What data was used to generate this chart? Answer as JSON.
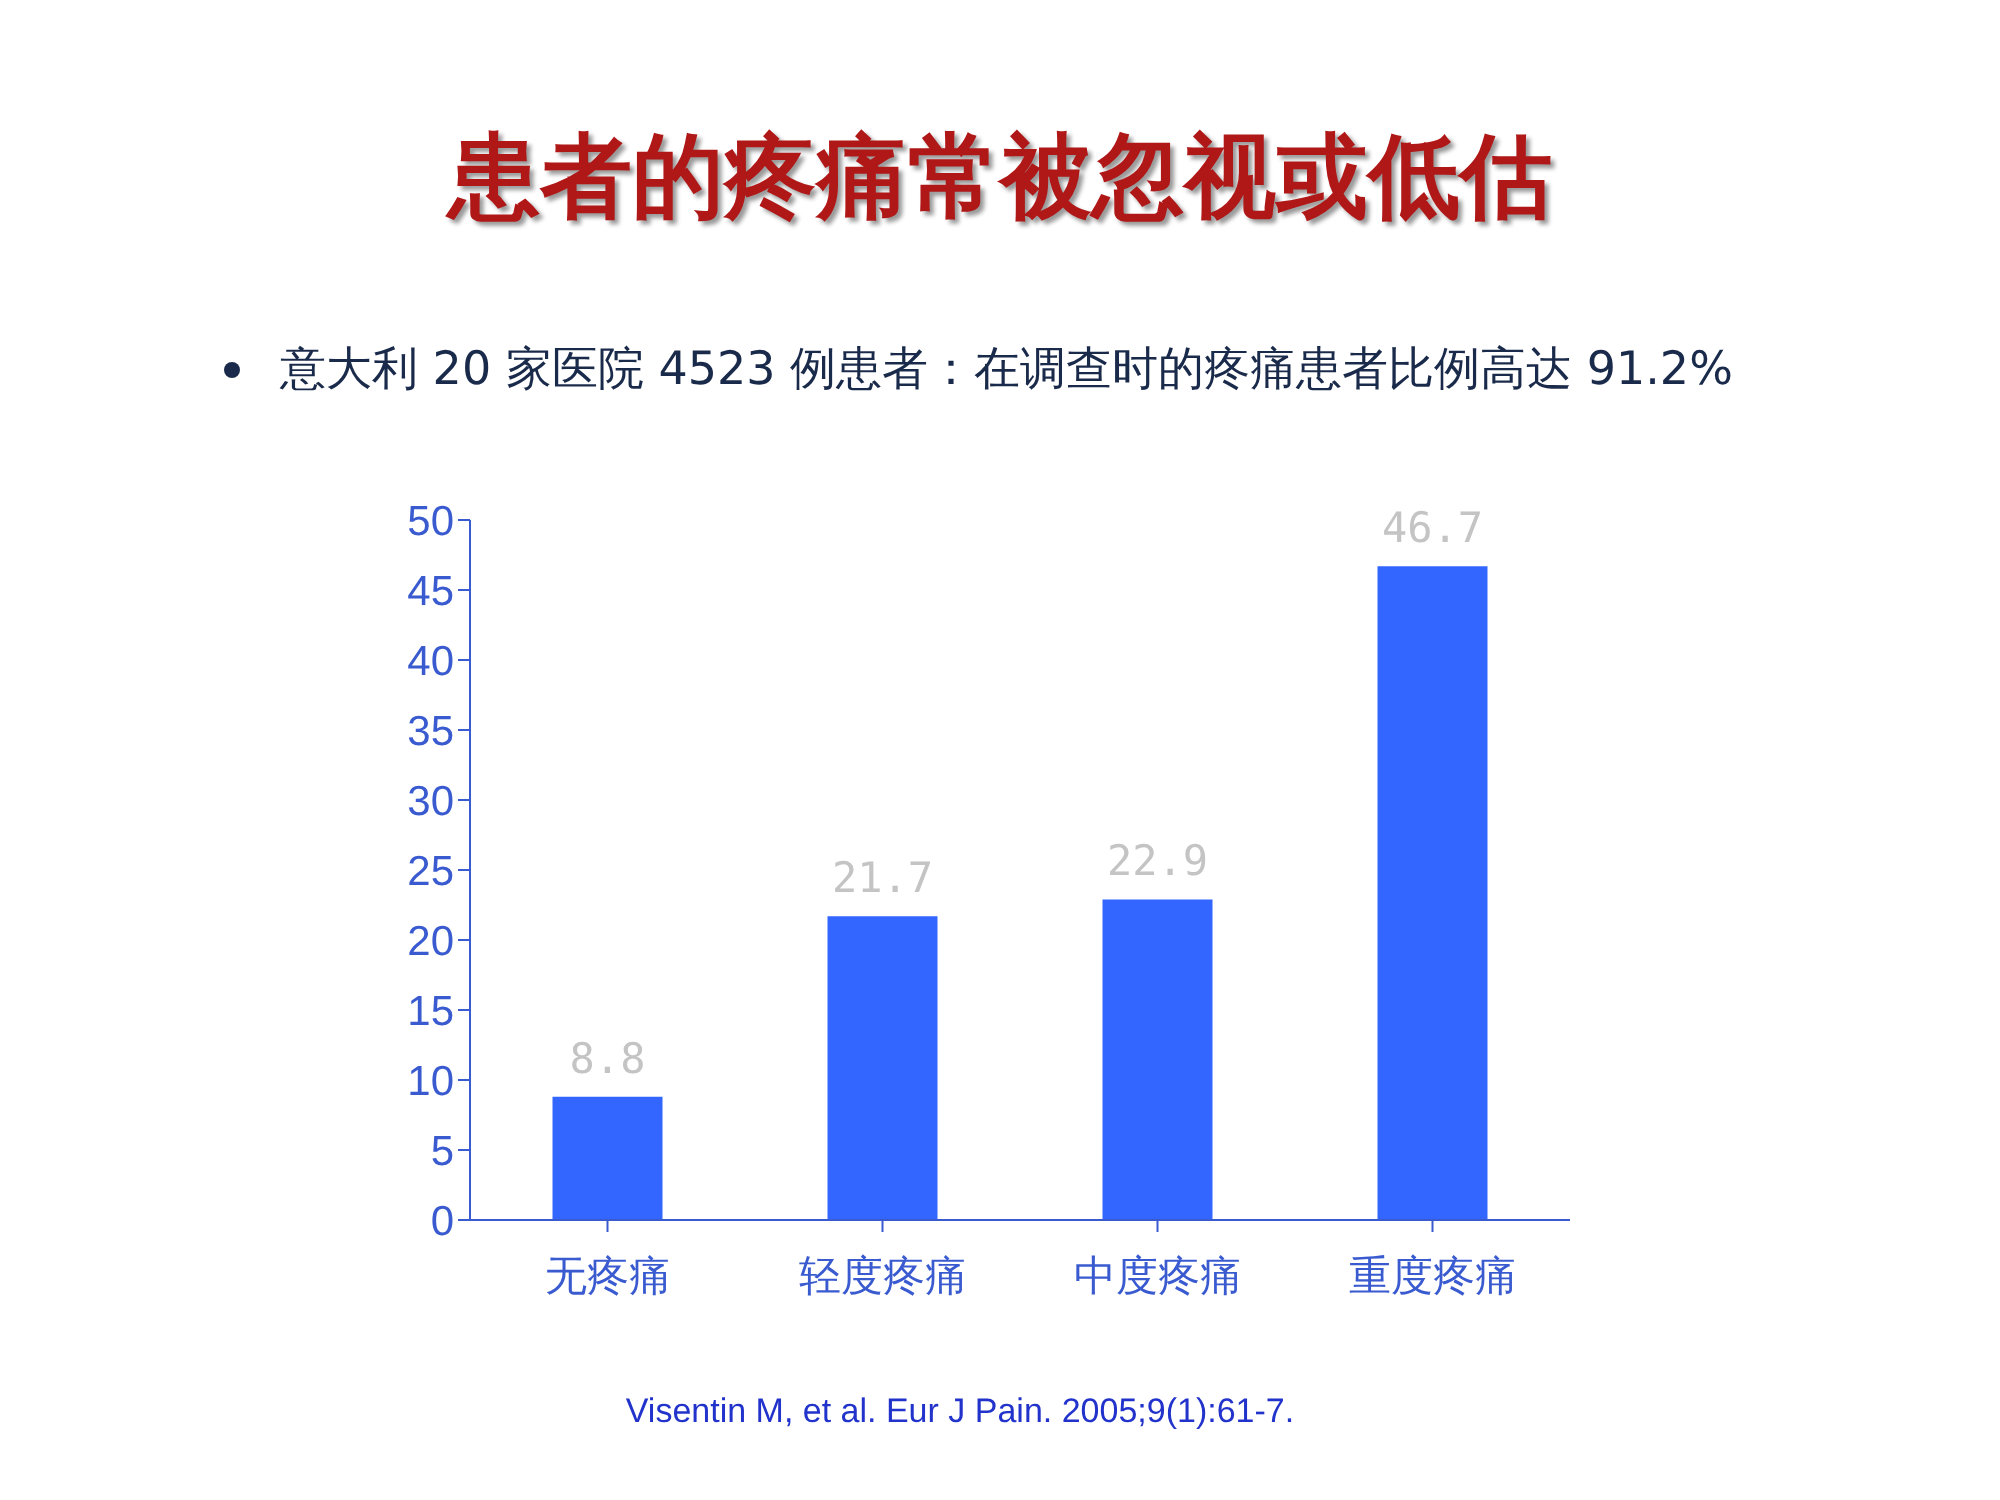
{
  "chart_data": {
    "type": "bar",
    "title": "患者的疼痛常被忽视或低估",
    "subtitle": "意大利 20 家医院 4523 例患者：在调查时的疼痛患者比例高达 91.2%",
    "categories": [
      "无疼痛",
      "轻度疼痛",
      "中度疼痛",
      "重度疼痛"
    ],
    "values": [
      8.8,
      21.7,
      22.9,
      46.7
    ],
    "color": "#3366ff",
    "ylim": [
      0,
      50
    ],
    "yticks": [
      0,
      5,
      10,
      15,
      20,
      25,
      30,
      35,
      40,
      45,
      50
    ],
    "grid": false,
    "data_labels": true,
    "annotations": [
      "Visentin M, et al. Eur J Pain. 2005;9(1):61-7."
    ]
  }
}
